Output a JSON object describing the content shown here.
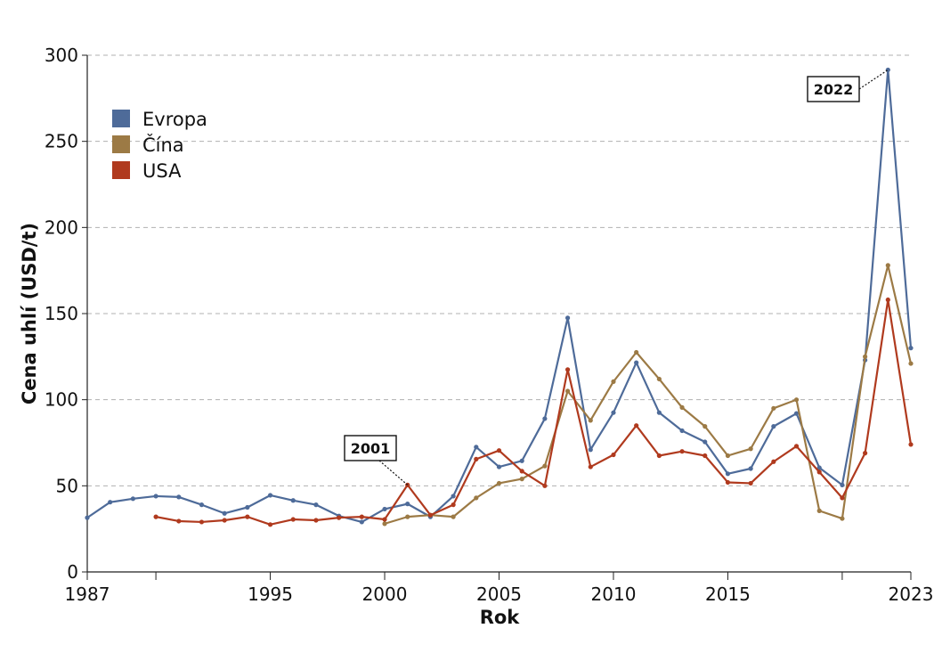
{
  "chart_data": {
    "type": "line",
    "xlabel": "Rok",
    "ylabel": "Cena uhlí (USD/t)",
    "xlim": [
      1987,
      2023
    ],
    "ylim": [
      0,
      300
    ],
    "y_ticks": [
      0,
      50,
      100,
      150,
      200,
      250,
      300
    ],
    "x_tick_marks": [
      1987,
      1990,
      1995,
      2000,
      2005,
      2010,
      2015,
      2020,
      2023
    ],
    "x_tick_labels": [
      {
        "x": 1987,
        "label": "1987"
      },
      {
        "x": 1995,
        "label": "1995"
      },
      {
        "x": 2000,
        "label": "2000"
      },
      {
        "x": 2005,
        "label": "2005"
      },
      {
        "x": 2010,
        "label": "2010"
      },
      {
        "x": 2015,
        "label": "2015"
      },
      {
        "x": 2023,
        "label": "2023"
      }
    ],
    "grid": "horizontal-dashed",
    "legend_position": "top-left",
    "series": [
      {
        "name": "Evropa",
        "color": "#4e6b99",
        "points": [
          [
            1987,
            31.5
          ],
          [
            1988,
            40.5
          ],
          [
            1989,
            42.5
          ],
          [
            1990,
            44
          ],
          [
            1991,
            43.5
          ],
          [
            1992,
            39
          ],
          [
            1993,
            34
          ],
          [
            1994,
            37.5
          ],
          [
            1995,
            44.5
          ],
          [
            1996,
            41.5
          ],
          [
            1997,
            39
          ],
          [
            1998,
            32.5
          ],
          [
            1999,
            29
          ],
          [
            2000,
            36.5
          ],
          [
            2001,
            39.5
          ],
          [
            2002,
            32
          ],
          [
            2003,
            44
          ],
          [
            2004,
            72.5
          ],
          [
            2005,
            61
          ],
          [
            2006,
            64.5
          ],
          [
            2007,
            89
          ],
          [
            2008,
            147.5
          ],
          [
            2009,
            71
          ],
          [
            2010,
            92.5
          ],
          [
            2011,
            121.5
          ],
          [
            2012,
            92.5
          ],
          [
            2013,
            82
          ],
          [
            2014,
            75.5
          ],
          [
            2015,
            57
          ],
          [
            2016,
            60
          ],
          [
            2017,
            84.5
          ],
          [
            2018,
            92
          ],
          [
            2019,
            60.5
          ],
          [
            2020,
            50.5
          ],
          [
            2021,
            123
          ],
          [
            2022,
            291.5
          ],
          [
            2023,
            130
          ]
        ]
      },
      {
        "name": "Čína",
        "color": "#9c7a45",
        "points": [
          [
            2000,
            28
          ],
          [
            2001,
            32
          ],
          [
            2002,
            33
          ],
          [
            2003,
            32
          ],
          [
            2004,
            43
          ],
          [
            2005,
            51.5
          ],
          [
            2006,
            54
          ],
          [
            2007,
            61.5
          ],
          [
            2008,
            105
          ],
          [
            2009,
            88
          ],
          [
            2010,
            110.5
          ],
          [
            2011,
            127.5
          ],
          [
            2012,
            112
          ],
          [
            2013,
            95.5
          ],
          [
            2014,
            84.5
          ],
          [
            2015,
            67.5
          ],
          [
            2016,
            71.5
          ],
          [
            2017,
            95
          ],
          [
            2018,
            100
          ],
          [
            2019,
            35.5
          ],
          [
            2020,
            31
          ],
          [
            2021,
            125
          ],
          [
            2022,
            178
          ],
          [
            2023,
            121
          ]
        ]
      },
      {
        "name": "USA",
        "color": "#b03a1e",
        "points": [
          [
            1990,
            32
          ],
          [
            1991,
            29.5
          ],
          [
            1992,
            29
          ],
          [
            1993,
            30
          ],
          [
            1994,
            32
          ],
          [
            1995,
            27.5
          ],
          [
            1996,
            30.5
          ],
          [
            1997,
            30
          ],
          [
            1998,
            31.5
          ],
          [
            1999,
            32
          ],
          [
            2000,
            30.5
          ],
          [
            2001,
            50.5
          ],
          [
            2002,
            33
          ],
          [
            2003,
            39
          ],
          [
            2004,
            65.5
          ],
          [
            2005,
            70.5
          ],
          [
            2006,
            58.5
          ],
          [
            2007,
            50
          ],
          [
            2008,
            117.5
          ],
          [
            2009,
            61
          ],
          [
            2010,
            68
          ],
          [
            2011,
            85
          ],
          [
            2012,
            67.5
          ],
          [
            2013,
            70
          ],
          [
            2014,
            67.5
          ],
          [
            2015,
            52
          ],
          [
            2016,
            51.5
          ],
          [
            2017,
            64
          ],
          [
            2018,
            73
          ],
          [
            2019,
            58
          ],
          [
            2020,
            43
          ],
          [
            2021,
            69
          ],
          [
            2022,
            158
          ],
          [
            2023,
            74
          ]
        ]
      }
    ],
    "annotations": [
      {
        "text": "2001",
        "x": 2001,
        "y": 50.5,
        "series": "USA"
      },
      {
        "text": "2022",
        "x": 2022,
        "y": 291.5,
        "series": "Evropa"
      }
    ]
  }
}
